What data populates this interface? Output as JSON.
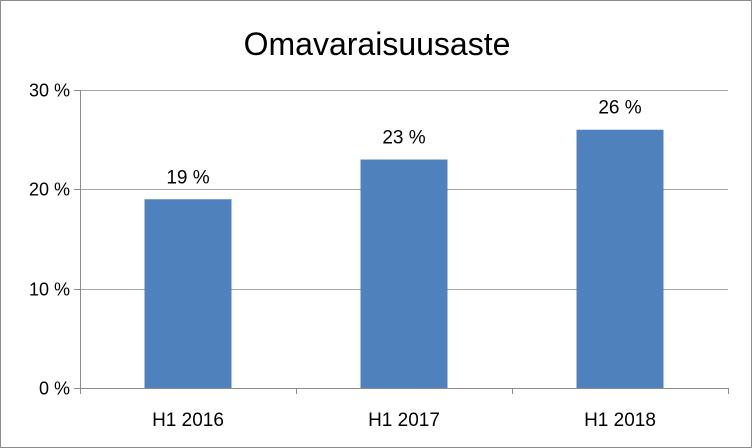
{
  "chart_data": {
    "type": "bar",
    "title": "Omavaraisuusaste",
    "categories": [
      "H1 2016",
      "H1 2017",
      "H1 2018"
    ],
    "values": [
      19,
      23,
      26
    ],
    "data_labels": [
      "19 %",
      "23 %",
      "26 %"
    ],
    "yticks": [
      0,
      10,
      20,
      30
    ],
    "ytick_labels": [
      "0 %",
      "10 %",
      "20 %",
      "30 %"
    ],
    "ylim": [
      0,
      30
    ],
    "grid": true,
    "legend": "none",
    "bar_color": "#4f81bd",
    "grid_color": "#a6a6a6",
    "axis_color": "#8c8c8c"
  }
}
